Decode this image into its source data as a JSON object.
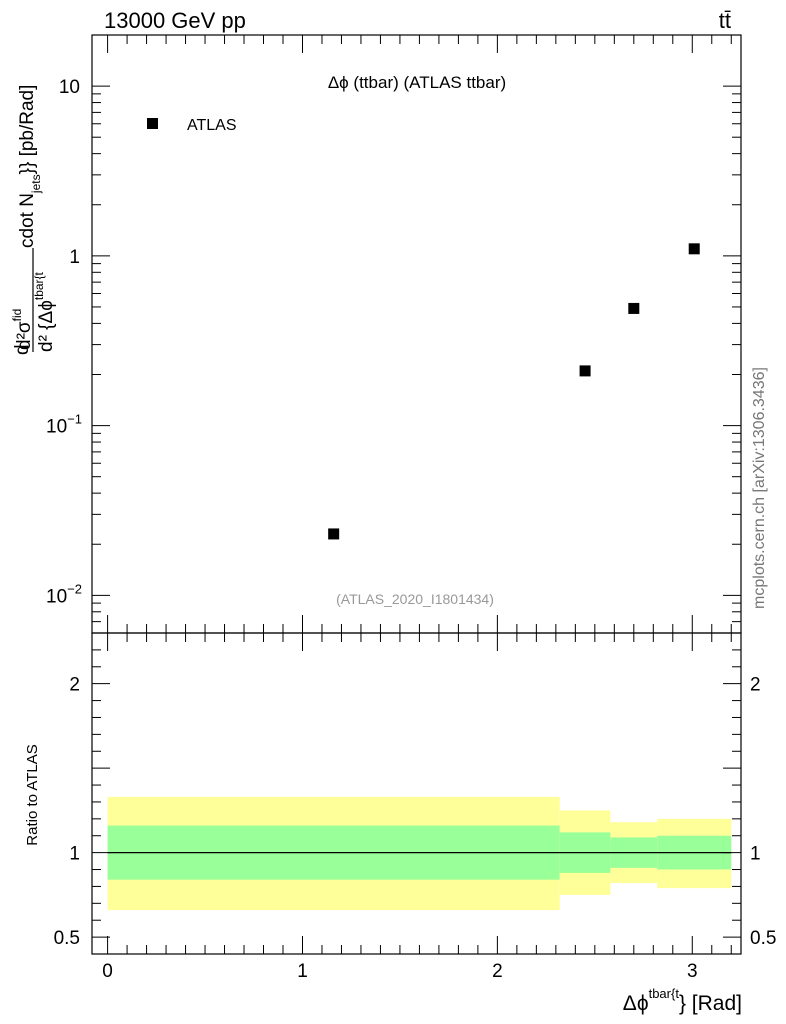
{
  "header": {
    "energy_label": "13000 GeV pp",
    "process_label": "tt̄"
  },
  "side_label": "mcplots.cern.ch [arXiv:1306.3436]",
  "chart_data": [
    {
      "type": "scatter",
      "title": "Δϕ (ttbar) (ATLAS ttbar)",
      "watermark": "(ATLAS_2020_I1801434)",
      "ylabel": "d²σ^fid / d² {Δϕ^tbar{t} cdot N_jets}} [pb/Rad]",
      "ylabel_parts": {
        "top": "d²σ",
        "top_sup": "fid",
        "bottom": "d² {Δϕ",
        "bottom_sup": "tbar{t",
        "tail_main": "cdot N",
        "tail_sub": "jets",
        "tail_end": "}} [pb/Rad]",
        "lead": "d"
      },
      "y_scale": "log",
      "ylim": [
        0.006,
        20
      ],
      "xlim": [
        -0.08,
        3.25
      ],
      "y_ticks": [
        {
          "value": 10,
          "label": "10"
        },
        {
          "value": 1,
          "label": "1"
        },
        {
          "value": 0.1,
          "label": "10",
          "exp": "−1"
        },
        {
          "value": 0.01,
          "label": "10",
          "exp": "−2"
        }
      ],
      "legend": {
        "position": "top-left",
        "entries": [
          {
            "name": "ATLAS",
            "marker": "square",
            "color": "#000000"
          }
        ]
      },
      "series": [
        {
          "name": "ATLAS",
          "x": [
            1.16,
            2.45,
            2.7,
            3.01
          ],
          "y": [
            0.023,
            0.21,
            0.49,
            1.1
          ]
        }
      ]
    },
    {
      "type": "area",
      "ylabel": "Ratio to ATLAS",
      "xlabel_parts": {
        "main": "Δϕ",
        "sup": "tbar{t",
        "tail": "} [Rad]"
      },
      "xlim": [
        -0.08,
        3.25
      ],
      "ylim": [
        0.4,
        2.3
      ],
      "x_ticks": [
        0,
        1,
        2,
        3
      ],
      "y_ticks": [
        {
          "value": 2,
          "label": "2"
        },
        {
          "value": 1,
          "label": "1"
        },
        {
          "value": 0.5,
          "label": "0.5"
        }
      ],
      "reference_line": 1,
      "bands": {
        "bins": [
          0,
          2.32,
          2.58,
          2.82,
          3.2
        ],
        "inner_color": "#99ff99",
        "outer_color": "#ffff99",
        "inner": {
          "low": [
            0.84,
            0.88,
            0.91,
            0.9
          ],
          "high": [
            1.16,
            1.12,
            1.09,
            1.1
          ]
        },
        "outer": {
          "low": [
            0.66,
            0.75,
            0.82,
            0.79
          ],
          "high": [
            1.33,
            1.25,
            1.18,
            1.2
          ]
        }
      }
    }
  ]
}
